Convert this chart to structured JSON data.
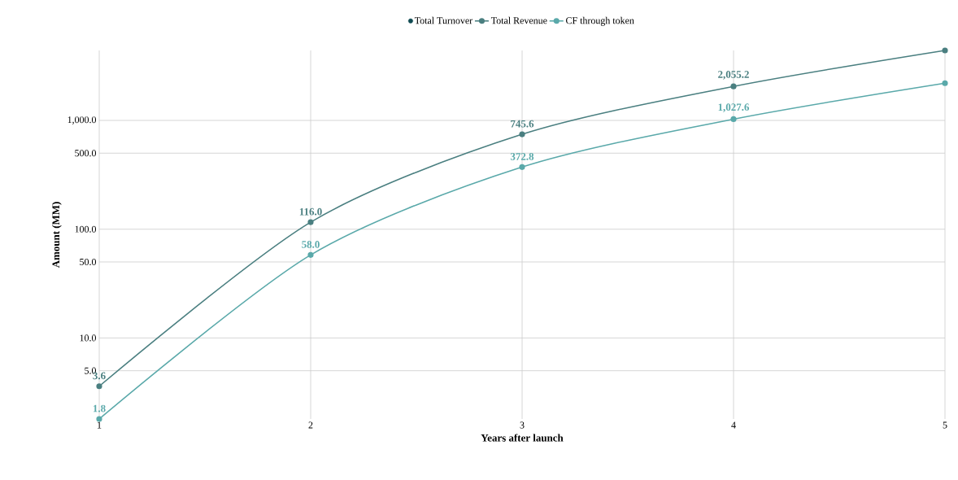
{
  "chart_data": {
    "type": "line",
    "xlabel": "Years after launch",
    "ylabel": "Amount (MM)",
    "log": "y",
    "x": [
      1,
      2,
      3,
      4,
      5
    ],
    "xlim": [
      1,
      5
    ],
    "ylim": [
      1.8,
      4400
    ],
    "xticks": [
      1,
      2,
      3,
      4,
      5
    ],
    "yticks": [
      {
        "value": 5,
        "label": "5.0"
      },
      {
        "value": 10,
        "label": "10.0"
      },
      {
        "value": 50,
        "label": "50.0"
      },
      {
        "value": 100,
        "label": "100.0"
      },
      {
        "value": 500,
        "label": "500.0"
      },
      {
        "value": 1000,
        "label": "1,000.0"
      }
    ],
    "grid": true,
    "legend": "top",
    "marker": "circle",
    "line_style": "solid",
    "series": [
      {
        "name": "Total Turnover",
        "color": "#0f4a52",
        "values": [
          null,
          null,
          null,
          null,
          null
        ]
      },
      {
        "name": "Total Revenue",
        "color": "#4a7f80",
        "values": [
          3.6,
          116.0,
          745.6,
          2055.2,
          4400
        ],
        "value_labels": [
          "3.6",
          "116.0",
          "745.6",
          "2,055.2",
          null
        ]
      },
      {
        "name": "CF through token",
        "color": "#5aa9aa",
        "values": [
          1.8,
          58.0,
          372.8,
          1027.6,
          2200
        ],
        "value_labels": [
          "1.8",
          "58.0",
          "372.8",
          "1,027.6",
          null
        ]
      }
    ]
  }
}
